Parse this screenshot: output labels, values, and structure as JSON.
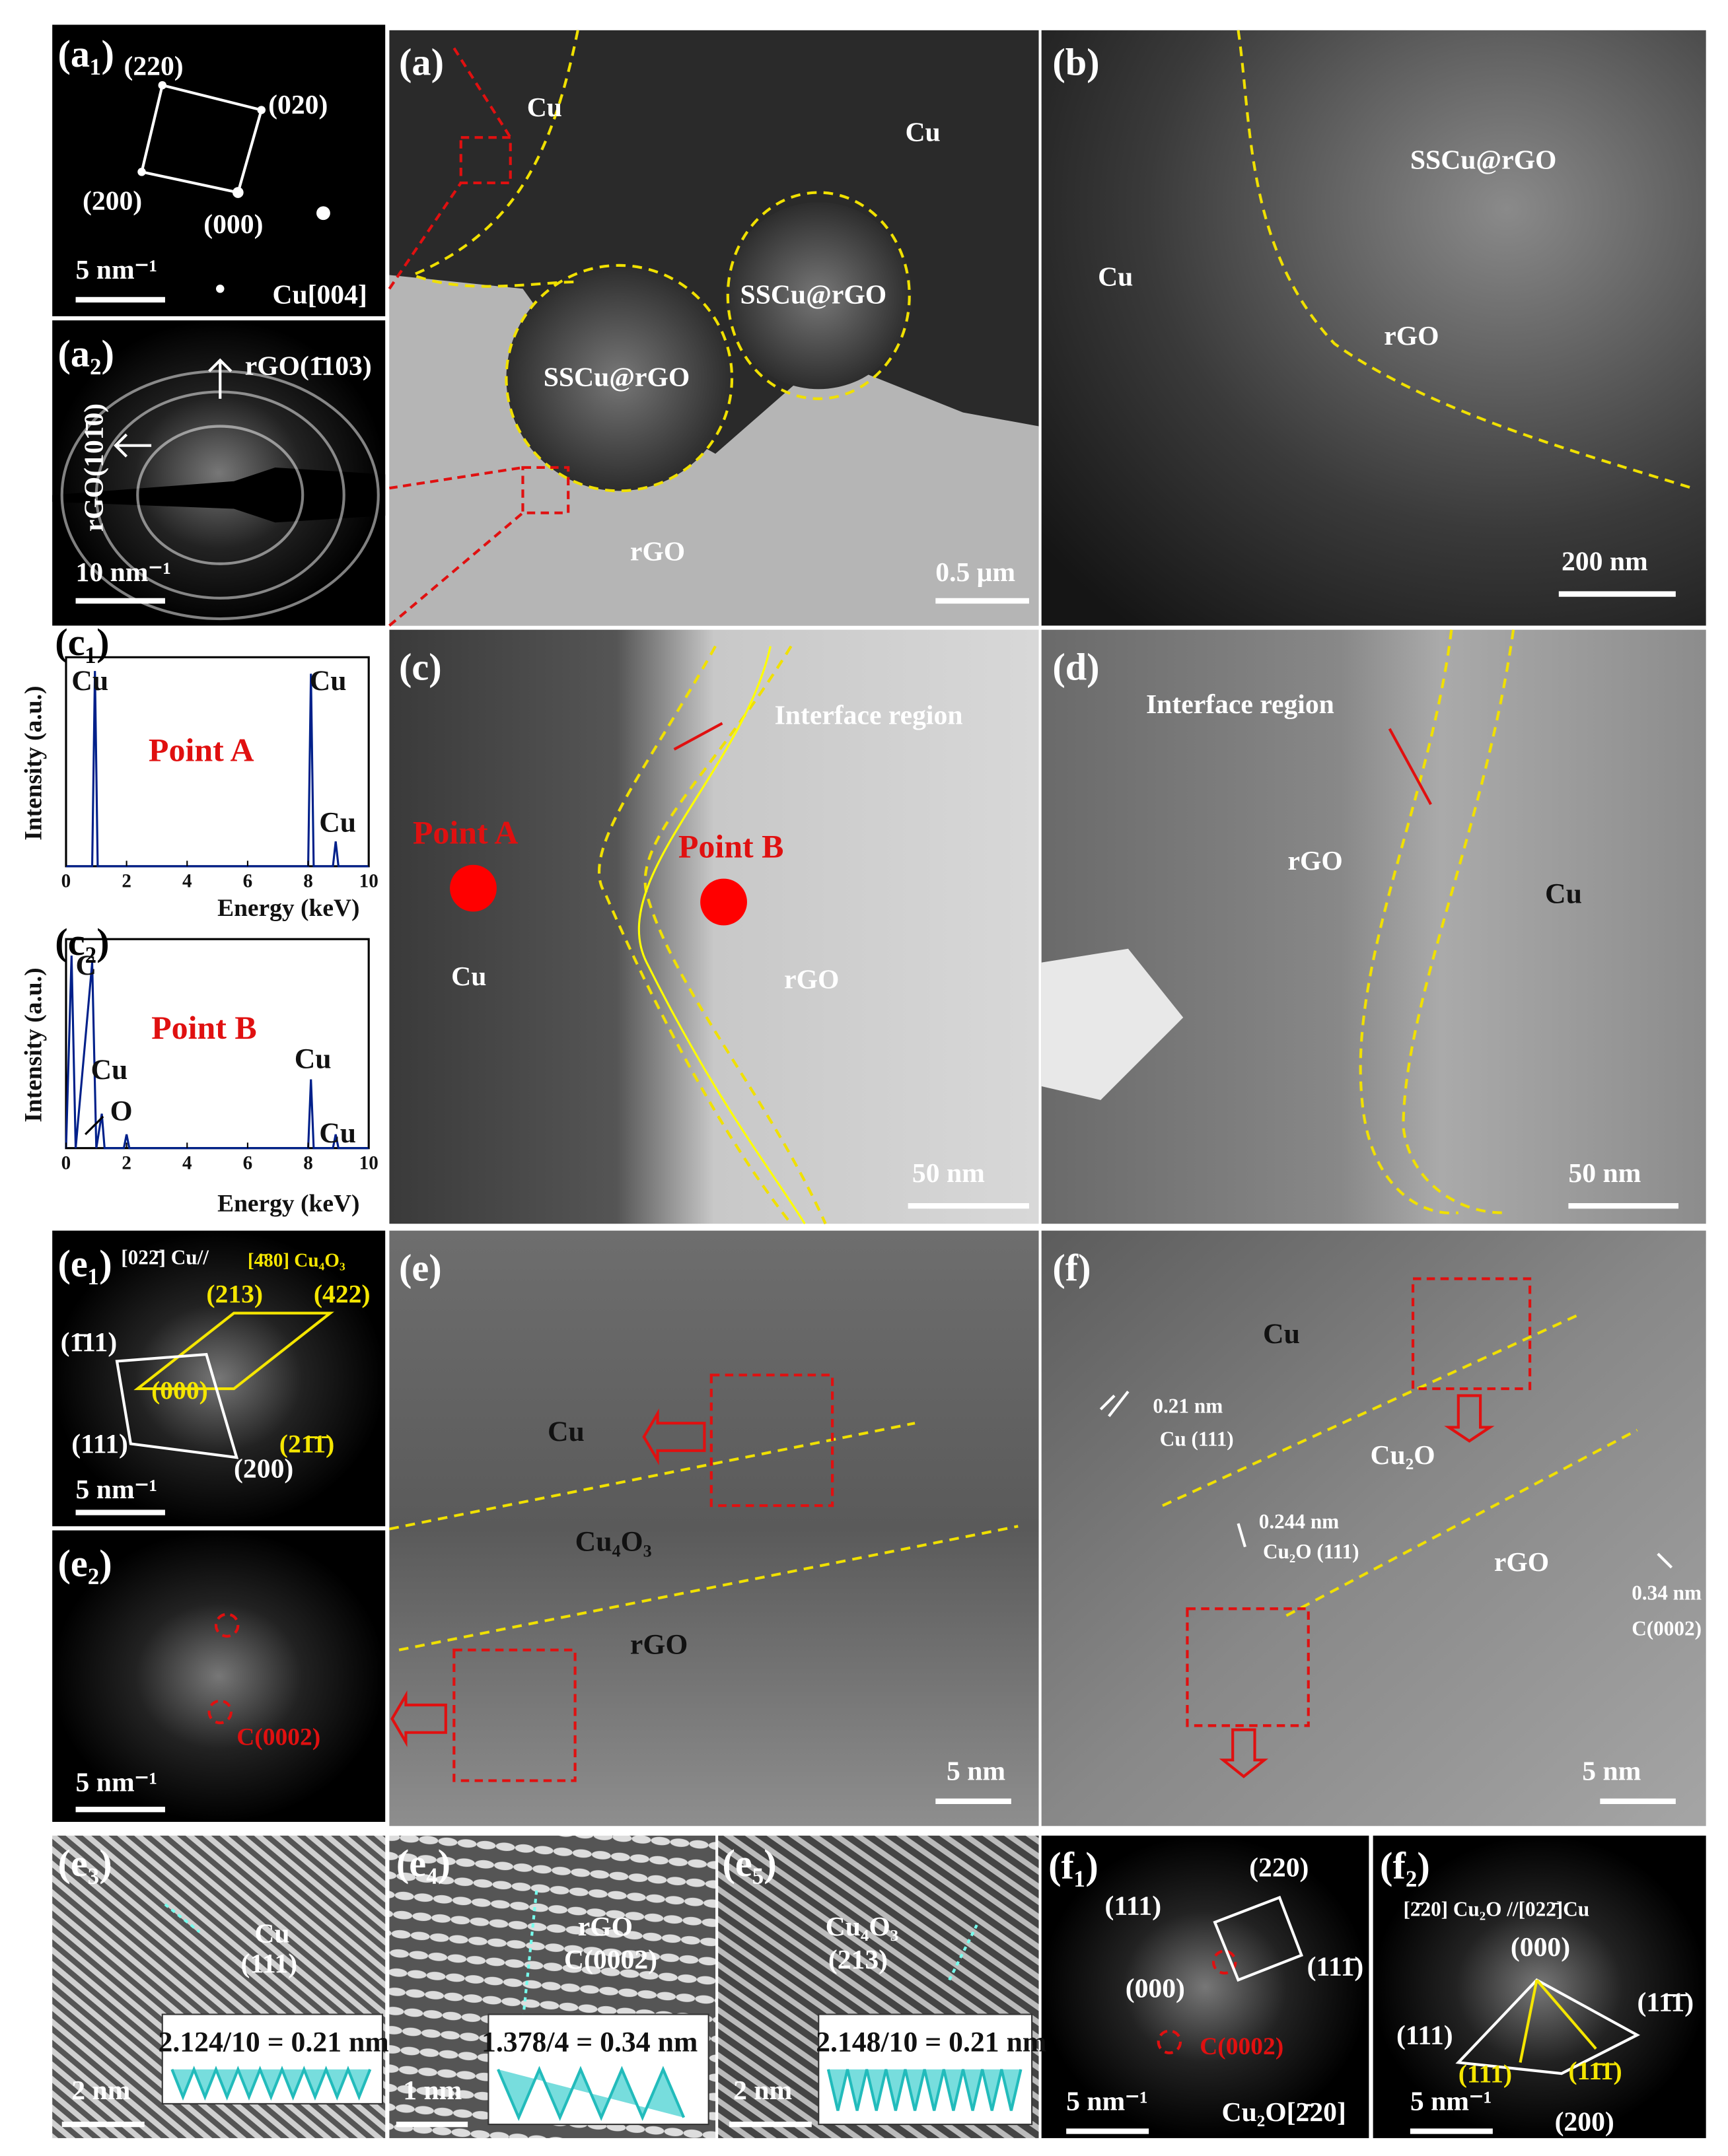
{
  "panels": {
    "a1": {
      "label": "(a₁)",
      "spots": [
        "(220)",
        "(020)",
        "(200)",
        "(000)"
      ],
      "scale_bar": "5 nm⁻¹",
      "zone_axis": "Cu[004]"
    },
    "a2": {
      "label": "(a₂)",
      "rings": [
        "rGO(1̄103)",
        "rGO(101̄0)"
      ],
      "scale_bar": "10 nm⁻¹"
    },
    "a": {
      "label": "(a)",
      "annotations": [
        "Cu",
        "Cu",
        "SSCu@rGO",
        "SSCu@rGO",
        "rGO"
      ],
      "scale_bar": "0.5 μm"
    },
    "b": {
      "label": "(b)",
      "annotations": [
        "SSCu@rGO",
        "Cu",
        "rGO"
      ],
      "scale_bar": "200 nm"
    },
    "c1": {
      "label": "(c₁)",
      "peaks": [
        "Cu",
        "Cu",
        "Cu"
      ],
      "point": "Point  A",
      "y_label": "Intensity (a.u.)",
      "x_label": "Energy (keV)",
      "xticks": [
        0,
        2,
        4,
        6,
        8,
        10
      ]
    },
    "c2": {
      "label": "(c₂)",
      "peaks": [
        "C",
        "Cu",
        "Cu",
        "O",
        "Cu"
      ],
      "point": "Point  B",
      "y_label": "Intensity (a.u.)",
      "x_label": "Energy (keV)",
      "xticks": [
        0,
        2,
        4,
        6,
        8,
        10
      ]
    },
    "c": {
      "label": "(c)",
      "annotations": [
        "Interface region",
        "Point  A",
        "Point  B",
        "Cu",
        "rGO"
      ],
      "scale_bar": "50 nm"
    },
    "d": {
      "label": "(d)",
      "annotations": [
        "Interface region",
        "rGO",
        "Cu"
      ],
      "scale_bar": "50 nm"
    },
    "e1": {
      "label": "(e₁)",
      "zone": [
        "[022̄] Cu//",
        "[4̄80] Cu₄O₃"
      ],
      "spots": [
        "(213)",
        "(422)",
        "(1̄11)",
        "(000)",
        "(21̄1̄)",
        "(111)",
        "(200)"
      ],
      "scale_bar": "5 nm⁻¹"
    },
    "e2": {
      "label": "(e₂)",
      "spot": "C(0002)",
      "scale_bar": "5 nm⁻¹"
    },
    "e": {
      "label": "(e)",
      "annotations": [
        "Cu",
        "Cu₄O₃",
        "rGO"
      ],
      "scale_bar": "5 nm"
    },
    "f": {
      "label": "(f)",
      "annotations": [
        "Cu",
        "0.21 nm",
        "Cu (111)",
        "Cu₂O",
        "0.244 nm",
        "Cu₂O (111)",
        "rGO",
        "0.34 nm",
        "C(0002)"
      ],
      "scale_bar": "5 nm"
    },
    "e3": {
      "label": "(e₃)",
      "phase": [
        "Cu",
        "(111)"
      ],
      "measure": "2.124/10 = 0.21 nm",
      "scale_bar": "2 nm"
    },
    "e4": {
      "label": "(e₄)",
      "phase": [
        "rGO",
        "C(0002)"
      ],
      "measure": "1.378/4 = 0.34 nm",
      "scale_bar": "1 nm"
    },
    "e5": {
      "label": "(e₅)",
      "phase": [
        "Cu₄O₃",
        "(213)"
      ],
      "measure": "2.148/10 = 0.21 nm",
      "scale_bar": "2 nm"
    },
    "f1": {
      "label": "(f₁)",
      "spots": [
        "(220)",
        "(111)",
        "(111̄)",
        "(000)",
        "C(0002)"
      ],
      "scale_bar": "5 nm⁻¹",
      "zone_axis": "Cu₂O[2̄20]"
    },
    "f2": {
      "label": "(f₂)",
      "zone": "[2̄20] Cu₂O //[022̄]Cu",
      "spots": [
        "(000)",
        "(111)",
        "(11̄1̄)",
        "(111)",
        "(11̄1̄)",
        "(200)"
      ],
      "scale_bar": "5 nm⁻¹"
    }
  }
}
